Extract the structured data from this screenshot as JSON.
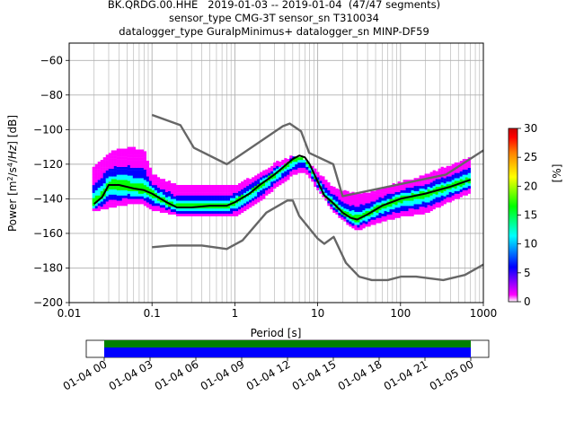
{
  "title": {
    "line1": "BK.QRDG.00.HHE   2019-01-03 -- 2019-01-04  (47/47 segments)",
    "line2": "sensor_type CMG-3T sensor_sn T310034",
    "line3": "datalogger_type GuralpMinimus+ datalogger_sn MINP-DF59"
  },
  "chart_data": [
    {
      "type": "heatmap",
      "xlabel": "Period [s]",
      "ylabel": "Power [m²/s⁴/Hz] [dB]",
      "xscale": "log",
      "xlim": [
        0.01,
        1000
      ],
      "ylim": [
        -200,
        -50
      ],
      "grid": true,
      "x_ticks": [
        "0.01",
        "0.1",
        "1",
        "10",
        "100",
        "1000"
      ],
      "y_ticks": [
        "−200",
        "−180",
        "−160",
        "−140",
        "−120",
        "−100",
        "−80",
        "−60"
      ],
      "mean_curve": {
        "x": [
          0.02,
          0.025,
          0.03,
          0.04,
          0.06,
          0.08,
          0.1,
          0.15,
          0.2,
          0.3,
          0.5,
          0.8,
          1.0,
          1.5,
          2,
          3,
          4,
          5,
          6,
          7,
          8,
          10,
          12,
          15,
          20,
          25,
          30,
          40,
          60,
          100,
          200,
          400,
          700
        ],
        "y": [
          -143,
          -139,
          -132,
          -132,
          -134,
          -135,
          -137,
          -142,
          -145,
          -145,
          -144,
          -144,
          -142,
          -137,
          -132,
          -126,
          -121,
          -117,
          -115,
          -116,
          -120,
          -130,
          -138,
          -142,
          -148,
          -151,
          -152,
          -149,
          -144,
          -140,
          -137,
          -133,
          -129
        ]
      },
      "nlnm": {
        "x": [
          0.1,
          0.17,
          0.4,
          0.8,
          1.24,
          2.4,
          4.3,
          5.0,
          6.0,
          10,
          12,
          15.6,
          21.9,
          31.6,
          45,
          70,
          101,
          154,
          328,
          600,
          1000
        ],
        "y": [
          -168,
          -167,
          -167,
          -169,
          -164,
          -148,
          -141,
          -141,
          -150,
          -163,
          -166,
          -162,
          -177,
          -185,
          -187,
          -187,
          -185,
          -185,
          -187,
          -184,
          -178
        ]
      },
      "nhnm": {
        "x": [
          0.1,
          0.22,
          0.32,
          0.8,
          3.8,
          4.6,
          6.3,
          7.9,
          15.4,
          20,
          354,
          1000
        ],
        "y": [
          -91.5,
          -97.4,
          -110.5,
          -120,
          -98,
          -96.5,
          -101,
          -113.5,
          -120,
          -138.5,
          -126,
          -112
        ]
      },
      "envelope": {
        "x": [
          0.02,
          0.03,
          0.05,
          0.08,
          0.1,
          0.2,
          0.5,
          1,
          2,
          3,
          5,
          7,
          10,
          15,
          20,
          30,
          50,
          100,
          200,
          400,
          700
        ],
        "p_high": [
          -122,
          -114,
          -111,
          -112,
          -126,
          -133,
          -133,
          -133,
          -126,
          -120,
          -116,
          -118,
          -125,
          -133,
          -136,
          -138,
          -136,
          -131,
          -127,
          -121,
          -117
        ],
        "p_low": [
          -147,
          -145,
          -143,
          -143,
          -146,
          -149,
          -150,
          -150,
          -141,
          -134,
          -126,
          -124,
          -134,
          -146,
          -152,
          -158,
          -154,
          -150,
          -148,
          -141,
          -136
        ]
      }
    },
    {
      "type": "heatmap",
      "label": "colorbar",
      "ylabel": "[%]",
      "ylim": [
        0,
        30
      ],
      "ticks": [
        "0",
        "5",
        "10",
        "15",
        "20",
        "25",
        "30"
      ]
    },
    {
      "type": "bar",
      "label": "data coverage timeline",
      "x_ticks": [
        "01-04 00",
        "01-04 03",
        "01-04 06",
        "01-04 09",
        "01-04 12",
        "01-04 15",
        "01-04 18",
        "01-04 21",
        "01-05 00"
      ],
      "coverage": [
        0.0,
        1.0
      ]
    }
  ],
  "colors": {
    "mean": "#000000",
    "noise_models": "#666666",
    "grid": "#b0b0b0",
    "coverage_green": "#008000",
    "coverage_blue": "#0000ff",
    "colormap": [
      "#ffffff",
      "#ff00ff",
      "#0000ff",
      "#00ffff",
      "#00ff00",
      "#ffff00",
      "#ff8000",
      "#ff0000",
      "#cc0000"
    ]
  }
}
